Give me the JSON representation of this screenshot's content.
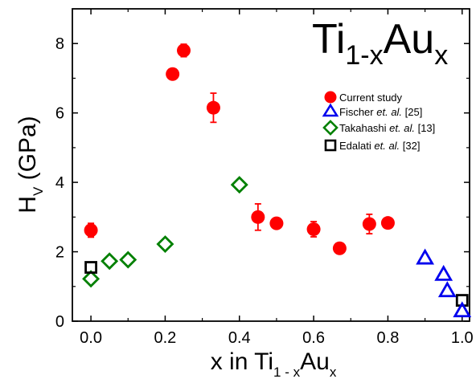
{
  "chart_data": {
    "type": "scatter",
    "title": {
      "main": "Ti",
      "sub1": "1-x",
      "mid": "Au",
      "sub2": "x"
    },
    "xlabel": {
      "pre": "x in Ti",
      "sub1": "1 - x",
      "mid": "Au",
      "sub2": "x"
    },
    "ylabel": {
      "main": "H",
      "sub": "V",
      "post": " (GPa)"
    },
    "xlim": [
      -0.05,
      1.02
    ],
    "ylim": [
      0,
      9
    ],
    "xticks": [
      "0.0",
      "0.2",
      "0.4",
      "0.6",
      "0.8",
      "1.0"
    ],
    "yticks": [
      "0",
      "2",
      "4",
      "6",
      "8"
    ],
    "legend_position": "right",
    "series": [
      {
        "name": "Current study",
        "marker": "circle",
        "color": "#ff0000",
        "points": [
          {
            "x": 0.0,
            "y": 2.62,
            "err": 0.2
          },
          {
            "x": 0.22,
            "y": 7.12,
            "err": 0
          },
          {
            "x": 0.25,
            "y": 7.8,
            "err": 0.18
          },
          {
            "x": 0.33,
            "y": 6.15,
            "err": 0.42
          },
          {
            "x": 0.45,
            "y": 3.0,
            "err": 0.38
          },
          {
            "x": 0.5,
            "y": 2.82,
            "err": 0
          },
          {
            "x": 0.6,
            "y": 2.65,
            "err": 0.22
          },
          {
            "x": 0.67,
            "y": 2.1,
            "err": 0
          },
          {
            "x": 0.75,
            "y": 2.8,
            "err": 0.28
          },
          {
            "x": 0.8,
            "y": 2.83,
            "err": 0
          }
        ]
      },
      {
        "name": "Fischer",
        "name_italic": "et. al.",
        "name_ref": "[25]",
        "marker": "triangle",
        "color": "#0000ee",
        "points": [
          {
            "x": 0.9,
            "y": 1.82
          },
          {
            "x": 0.95,
            "y": 1.35
          },
          {
            "x": 0.96,
            "y": 0.88
          },
          {
            "x": 1.0,
            "y": 0.3
          }
        ]
      },
      {
        "name": "Takahashi",
        "name_italic": "et. al.",
        "name_ref": "[13]",
        "marker": "diamond",
        "color": "#008000",
        "points": [
          {
            "x": 0.0,
            "y": 1.22
          },
          {
            "x": 0.05,
            "y": 1.73
          },
          {
            "x": 0.1,
            "y": 1.77
          },
          {
            "x": 0.2,
            "y": 2.22
          },
          {
            "x": 0.4,
            "y": 3.93
          }
        ]
      },
      {
        "name": "Edalati",
        "name_italic": "et. al.",
        "name_ref": "[32]",
        "marker": "square",
        "color": "#000000",
        "points": [
          {
            "x": 0.0,
            "y": 1.55
          },
          {
            "x": 1.0,
            "y": 0.6
          }
        ]
      }
    ]
  }
}
